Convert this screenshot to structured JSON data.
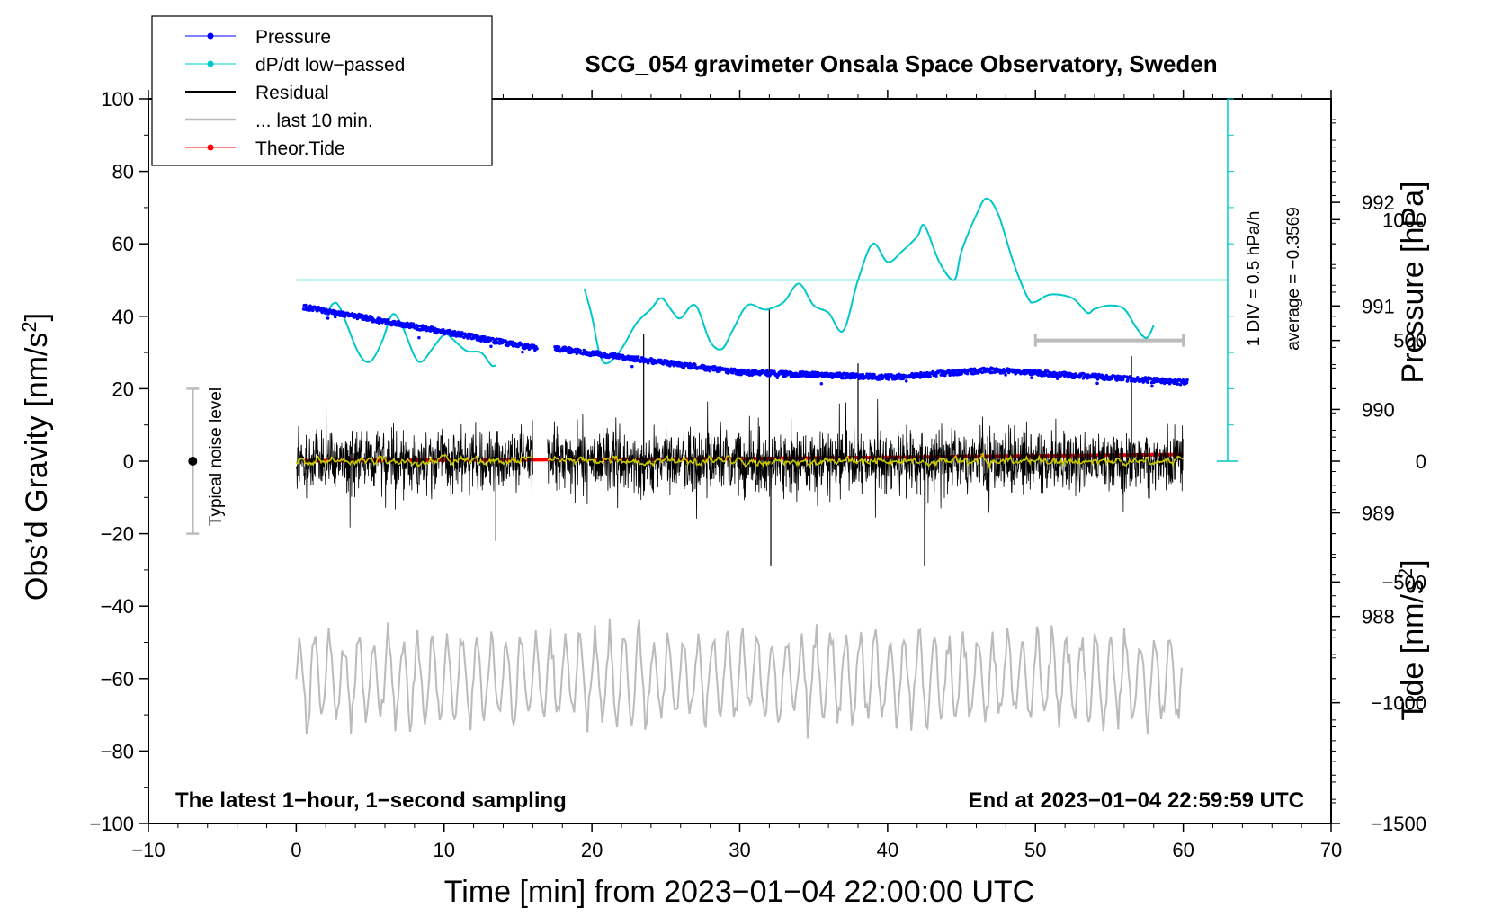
{
  "chart_data": {
    "type": "line",
    "title": "SCG_054 gravimeter Onsala Space Observatory, Sweden",
    "xlabel": "Time [min] from 2023−01−04 22:00:00 UTC",
    "ylabel_left": "Obs’d Gravity [nm/s",
    "ylabel_left_sup": "2",
    "ylabel_left_end": "]",
    "ylabel_right_pressure": "Pressure [hPa]",
    "ylabel_right_tide": "Tide [nm/s",
    "ylabel_right_tide_sup": "2",
    "ylabel_right_tide_end": "]",
    "xlim": [
      -10,
      70
    ],
    "ylim_left": [
      -100,
      100
    ],
    "ylim_pressure": [
      986,
      993
    ],
    "ylim_tide": [
      -1500,
      1500
    ],
    "x_ticks": [
      "−10",
      "0",
      "10",
      "20",
      "30",
      "40",
      "50",
      "60",
      "70"
    ],
    "y_ticks_left": [
      "100",
      "80",
      "60",
      "40",
      "20",
      "0",
      "−20",
      "−40",
      "−60",
      "−80",
      "−100"
    ],
    "pressure_ticks": [
      "988",
      "989",
      "990",
      "991",
      "992"
    ],
    "tide_ticks": [
      "1000",
      "500",
      "0",
      "−500",
      "−1000",
      "−1500"
    ],
    "legend": [
      {
        "label": "Pressure",
        "color": "#0000ff",
        "marker": true
      },
      {
        "label": "dP/dt low−passed",
        "color": "#00c8c8",
        "marker": true
      },
      {
        "label": "Residual",
        "color": "#000000",
        "marker": false
      },
      {
        "label": "... last 10 min.",
        "color": "#bbbbbb",
        "marker": false
      },
      {
        "label": "Theor.Tide",
        "color": "#ff0000",
        "marker": true
      }
    ],
    "noise_label": "Typical noise level",
    "noise_bar": {
      "x": -7,
      "y_center": 0,
      "half_range": 20
    },
    "dpdt_scale_label": "1 DIV = 0.5 hPa/h",
    "dpdt_average_label": "average = −0.3569",
    "bottom_left_note": "The latest 1−hour, 1−second sampling",
    "bottom_right_note": "End at 2023−01−04 22:59:59 UTC",
    "last10_bar": {
      "x_start": 50,
      "x_end": 60,
      "tide_value": 500
    },
    "series": {
      "pressure": {
        "segments": [
          [
            0.5,
            16.3
          ],
          [
            17.5,
            60.3
          ]
        ],
        "keypoints": [
          [
            0.5,
            990.99
          ],
          [
            16.3,
            990.59
          ],
          [
            17.5,
            990.59
          ],
          [
            25,
            990.45
          ],
          [
            30,
            990.36
          ],
          [
            40,
            990.31
          ],
          [
            47,
            990.38
          ],
          [
            60.3,
            990.26
          ]
        ]
      },
      "dpdt": {
        "baseline_y": 50,
        "keypoints_a": [
          [
            2,
            40
          ],
          [
            2.5,
            43.5
          ],
          [
            3,
            42
          ],
          [
            4.2,
            30
          ],
          [
            5,
            27.5
          ],
          [
            5.8,
            33
          ],
          [
            6.5,
            40.5
          ],
          [
            7.2,
            37
          ],
          [
            8,
            29
          ],
          [
            8.5,
            27.5
          ],
          [
            9.2,
            31
          ],
          [
            10,
            35
          ],
          [
            10.5,
            34
          ],
          [
            11.5,
            30.5
          ],
          [
            12.5,
            30
          ],
          [
            13.2,
            26.5
          ],
          [
            13.5,
            26.5
          ]
        ],
        "keypoints_b": [
          [
            19.5,
            47.5
          ],
          [
            20,
            40
          ],
          [
            20.5,
            30
          ],
          [
            21,
            27
          ],
          [
            22,
            31
          ],
          [
            23,
            38
          ],
          [
            24,
            42
          ],
          [
            24.7,
            45
          ],
          [
            25.5,
            41
          ],
          [
            26,
            39.5
          ],
          [
            27,
            43
          ],
          [
            28,
            33
          ],
          [
            28.8,
            31
          ],
          [
            29.5,
            36
          ],
          [
            30.5,
            43
          ],
          [
            31.5,
            42
          ],
          [
            32,
            42
          ],
          [
            33,
            44
          ],
          [
            34,
            49
          ],
          [
            35,
            43
          ],
          [
            36,
            41
          ],
          [
            37,
            36
          ],
          [
            38,
            50
          ],
          [
            39,
            60
          ],
          [
            40,
            55
          ],
          [
            41,
            58
          ],
          [
            42,
            62
          ],
          [
            42.5,
            65
          ],
          [
            43.5,
            55
          ],
          [
            44.5,
            50
          ],
          [
            45,
            58
          ],
          [
            46,
            68
          ],
          [
            46.7,
            72.5
          ],
          [
            47.5,
            68
          ],
          [
            48.5,
            55
          ],
          [
            49.5,
            45
          ],
          [
            50,
            44
          ],
          [
            51,
            46
          ],
          [
            52.5,
            45
          ],
          [
            53.5,
            41
          ],
          [
            54,
            42
          ],
          [
            55,
            43
          ],
          [
            56,
            42
          ],
          [
            56.8,
            37
          ],
          [
            57.5,
            34
          ],
          [
            58,
            37.5
          ]
        ]
      },
      "residual": {
        "segments": [
          [
            0,
            16
          ],
          [
            17,
            60
          ]
        ],
        "spikes": [
          [
            32,
            42
          ],
          [
            32.1,
            -29
          ],
          [
            23.5,
            35
          ],
          [
            38,
            27
          ],
          [
            42.5,
            -29
          ],
          [
            56.5,
            29
          ],
          [
            13.5,
            -22
          ]
        ]
      },
      "smoothed_residual": {
        "color": "#c8c800"
      },
      "last10": {
        "x_start": 0,
        "x_end": 60,
        "center_y": -60,
        "amplitude": 13
      },
      "tide": {
        "keypoints": [
          [
            0.5,
            1.5
          ],
          [
            30,
            10
          ],
          [
            60.3,
            28
          ]
        ]
      }
    }
  }
}
